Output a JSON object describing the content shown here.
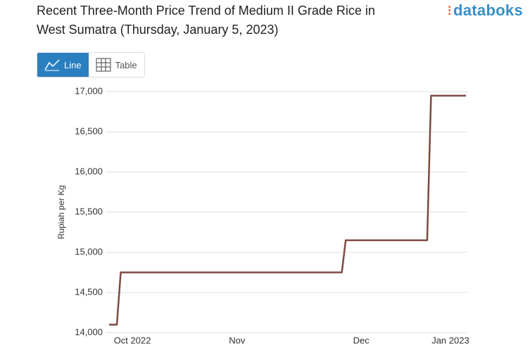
{
  "header": {
    "logo": "databoks",
    "tabs": [
      "Line",
      "Table"
    ]
  },
  "chart_data": {
    "type": "line",
    "title": "Recent Three-Month Price Trend of Medium II Grade Rice in West Sumatra (Thursday, January 5, 2023)",
    "y_label": "Rupiah per Kg",
    "categories": [
      null,
      null,
      null,
      null,
      null,
      null,
      "Oct 2022",
      null,
      null,
      null,
      null,
      null,
      null,
      null,
      null,
      null,
      null,
      null,
      null,
      null,
      null,
      null,
      null,
      null,
      null,
      null,
      null,
      null,
      null,
      null,
      null,
      null,
      null,
      "Nov",
      null,
      null,
      null,
      null,
      null,
      null,
      null,
      null,
      null,
      null,
      null,
      null,
      null,
      null,
      null,
      null,
      null,
      null,
      null,
      null,
      null,
      null,
      null,
      null,
      null,
      null,
      null,
      null,
      null,
      null,
      null,
      "Dec",
      null,
      null,
      null,
      null,
      null,
      null,
      null,
      null,
      null,
      null,
      null,
      null,
      null,
      null,
      null,
      null,
      null,
      null,
      null,
      null,
      null,
      null,
      "Jan 2023",
      null,
      null,
      null,
      null
    ],
    "values": [
      14100,
      14100,
      14100,
      14750,
      14750,
      14750,
      14750,
      14750,
      14750,
      14750,
      14750,
      14750,
      14750,
      14750,
      14750,
      14750,
      14750,
      14750,
      14750,
      14750,
      14750,
      14750,
      14750,
      14750,
      14750,
      14750,
      14750,
      14750,
      14750,
      14750,
      14750,
      14750,
      14750,
      14750,
      14750,
      14750,
      14750,
      14750,
      14750,
      14750,
      14750,
      14750,
      14750,
      14750,
      14750,
      14750,
      14750,
      14750,
      14750,
      14750,
      14750,
      14750,
      14750,
      14750,
      14750,
      14750,
      14750,
      14750,
      14750,
      14750,
      14750,
      15150,
      15150,
      15150,
      15150,
      15150,
      15150,
      15150,
      15150,
      15150,
      15150,
      15150,
      15150,
      15150,
      15150,
      15150,
      15150,
      15150,
      15150,
      15150,
      15150,
      15150,
      15150,
      16950,
      16950,
      16950,
      16950,
      16950,
      16950,
      16950,
      16950,
      16950,
      16950
    ],
    "color": "#7d4a42",
    "ylim": [
      14000,
      17000
    ],
    "yticks": [
      {
        "value": 14000,
        "label": "14,000"
      },
      {
        "value": 14500,
        "label": "14,500"
      },
      {
        "value": 15000,
        "label": "15,000"
      },
      {
        "value": 15500,
        "label": "15,500"
      },
      {
        "value": 16000,
        "label": "16,000"
      },
      {
        "value": 16500,
        "label": "16,500"
      },
      {
        "value": 17000,
        "label": "17,000"
      }
    ],
    "grid": true
  }
}
